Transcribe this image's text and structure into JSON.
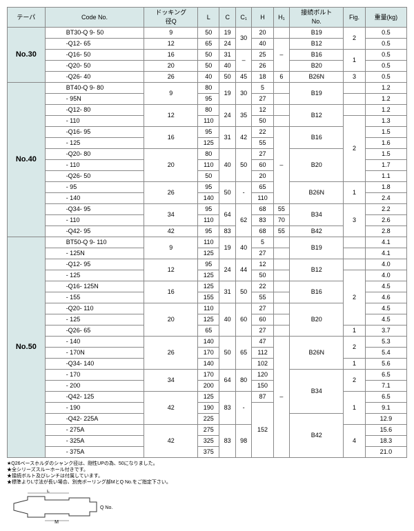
{
  "headers": [
    "テーパ",
    "Code No.",
    "ドッキング\n径Q",
    "L",
    "C",
    "C₁",
    "H",
    "H₁",
    "接続ボルト\nNo.",
    "Fig.",
    "重量(kg)"
  ],
  "groups": [
    {
      "taper": "No.30",
      "rows": [
        {
          "code": "BT30-Q 9- 50",
          "q": "9",
          "l": "50",
          "c": "19",
          "c1": "30",
          "h": "20",
          "h1": "",
          "bolt": "B19",
          "fig": "2",
          "wt": "0.5"
        },
        {
          "code": "-Q12- 65",
          "q": "12",
          "l": "65",
          "c": "24",
          "c1": "",
          "h": "40",
          "h1": "–",
          "bolt": "B12",
          "fig": "",
          "wt": "0.5"
        },
        {
          "code": "-Q16- 50",
          "q": "16",
          "l": "50",
          "c": "31",
          "c1": "–",
          "h": "25",
          "h1": "",
          "bolt": "B16",
          "fig": "1",
          "wt": "0.5"
        },
        {
          "code": "-Q20- 50",
          "q": "20",
          "l": "50",
          "c": "40",
          "c1": "",
          "h": "26",
          "h1": "",
          "bolt": "B20",
          "fig": "",
          "wt": "0.5"
        },
        {
          "code": "-Q26- 40",
          "q": "26",
          "l": "40",
          "c": "50",
          "c1": "45",
          "h": "18",
          "h1": "6",
          "bolt": "B26N",
          "fig": "3",
          "wt": "0.5"
        }
      ]
    },
    {
      "taper": "No.40",
      "rows": [
        {
          "code": "BT40-Q 9- 80",
          "q": "9",
          "l": "80",
          "c": "19",
          "c1": "30",
          "h": "5",
          "h1": "",
          "bolt": "B19",
          "fig": "",
          "wt": "1.2"
        },
        {
          "code": "- 95N",
          "q": "",
          "l": "95",
          "c": "",
          "c1": "",
          "h": "27",
          "h1": "",
          "bolt": "",
          "fig": "",
          "wt": "1.2"
        },
        {
          "code": "-Q12- 80",
          "q": "12",
          "l": "80",
          "c": "24",
          "c1": "35",
          "h": "12",
          "h1": "",
          "bolt": "B12",
          "fig": "",
          "wt": "1.2"
        },
        {
          "code": "- 110",
          "q": "",
          "l": "110",
          "c": "",
          "c1": "",
          "h": "50",
          "h1": "",
          "bolt": "",
          "fig": "2",
          "wt": "1.3"
        },
        {
          "code": "-Q16- 95",
          "q": "16",
          "l": "95",
          "c": "31",
          "c1": "42",
          "h": "22",
          "h1": "–",
          "bolt": "B16",
          "fig": "",
          "wt": "1.5"
        },
        {
          "code": "- 125",
          "q": "",
          "l": "125",
          "c": "",
          "c1": "",
          "h": "55",
          "h1": "",
          "bolt": "",
          "fig": "",
          "wt": "1.6"
        },
        {
          "code": "-Q20- 80",
          "q": "20",
          "l": "80",
          "c": "40",
          "c1": "50",
          "h": "27",
          "h1": "",
          "bolt": "B20",
          "fig": "",
          "wt": "1.5"
        },
        {
          "code": "- 110",
          "q": "",
          "l": "110",
          "c": "",
          "c1": "",
          "h": "60",
          "h1": "",
          "bolt": "",
          "fig": "",
          "wt": "1.7"
        },
        {
          "code": "-Q26- 50",
          "q": "",
          "l": "50",
          "c": "",
          "c1": "",
          "h": "20",
          "h1": "",
          "bolt": "",
          "fig": "",
          "wt": "1.1"
        },
        {
          "code": "- 95",
          "q": "26",
          "l": "95",
          "c": "50",
          "c1": "-",
          "h": "65",
          "h1": "",
          "bolt": "B26N",
          "fig": "1",
          "wt": "1.8"
        },
        {
          "code": "- 140",
          "q": "",
          "l": "140",
          "c": "",
          "c1": "",
          "h": "110",
          "h1": "",
          "bolt": "",
          "fig": "",
          "wt": "2.4"
        },
        {
          "code": "-Q34- 95",
          "q": "34",
          "l": "95",
          "c": "64",
          "c1": "62",
          "h": "68",
          "h1": "55",
          "bolt": "B34",
          "fig": "3",
          "wt": "2.2"
        },
        {
          "code": "- 110",
          "q": "",
          "l": "110",
          "c": "",
          "c1": "",
          "h": "83",
          "h1": "70",
          "bolt": "",
          "fig": "",
          "wt": "2.6"
        },
        {
          "code": "-Q42- 95",
          "q": "42",
          "l": "95",
          "c": "83",
          "c1": "",
          "h": "68",
          "h1": "55",
          "bolt": "B42",
          "fig": "",
          "wt": "2.8"
        }
      ]
    },
    {
      "taper": "No.50",
      "rows": [
        {
          "code": "BT50-Q 9- 110",
          "q": "9",
          "l": "110",
          "c": "19",
          "c1": "40",
          "h": "5",
          "h1": "",
          "bolt": "B19",
          "fig": "",
          "wt": "4.1"
        },
        {
          "code": "- 125N",
          "q": "",
          "l": "125",
          "c": "",
          "c1": "",
          "h": "27",
          "h1": "",
          "bolt": "",
          "fig": "",
          "wt": "4.1"
        },
        {
          "code": "-Q12- 95",
          "q": "12",
          "l": "95",
          "c": "24",
          "c1": "44",
          "h": "12",
          "h1": "",
          "bolt": "B12",
          "fig": "",
          "wt": "4.0"
        },
        {
          "code": "- 125",
          "q": "",
          "l": "125",
          "c": "",
          "c1": "",
          "h": "50",
          "h1": "",
          "bolt": "",
          "fig": "2",
          "wt": "4.0"
        },
        {
          "code": "-Q16- 125N",
          "q": "16",
          "l": "125",
          "c": "31",
          "c1": "50",
          "h": "22",
          "h1": "",
          "bolt": "B16",
          "fig": "",
          "wt": "4.5"
        },
        {
          "code": "- 155",
          "q": "",
          "l": "155",
          "c": "",
          "c1": "",
          "h": "55",
          "h1": "",
          "bolt": "",
          "fig": "",
          "wt": "4.6"
        },
        {
          "code": "-Q20- 110",
          "q": "20",
          "l": "110",
          "c": "40",
          "c1": "60",
          "h": "27",
          "h1": "",
          "bolt": "B20",
          "fig": "",
          "wt": "4.5"
        },
        {
          "code": "- 125",
          "q": "",
          "l": "125",
          "c": "",
          "c1": "",
          "h": "60",
          "h1": "",
          "bolt": "",
          "fig": "",
          "wt": "4.5"
        },
        {
          "code": "-Q26- 65",
          "q": "",
          "l": "65",
          "c": "",
          "c1": "",
          "h": "27",
          "h1": "",
          "bolt": "",
          "fig": "1",
          "wt": "3.7"
        },
        {
          "code": "- 140",
          "q": "26",
          "l": "140",
          "c": "50",
          "c1": "65",
          "h": "47",
          "h1": "–",
          "bolt": "B26N",
          "fig": "2",
          "wt": "5.3"
        },
        {
          "code": "- 170N",
          "q": "",
          "l": "170",
          "c": "",
          "c1": "",
          "h": "112",
          "h1": "",
          "bolt": "",
          "fig": "",
          "wt": "5.4"
        },
        {
          "code": "-Q34- 140",
          "q": "",
          "l": "140",
          "c": "",
          "c1": "",
          "h": "102",
          "h1": "",
          "bolt": "",
          "fig": "1",
          "wt": "5.6"
        },
        {
          "code": "- 170",
          "q": "34",
          "l": "170",
          "c": "64",
          "c1": "80",
          "h": "120",
          "h1": "",
          "bolt": "B34",
          "fig": "2",
          "wt": "6.5"
        },
        {
          "code": "- 200",
          "q": "",
          "l": "200",
          "c": "",
          "c1": "",
          "h": "150",
          "h1": "",
          "bolt": "",
          "fig": "",
          "wt": "7.1"
        },
        {
          "code": "-Q42- 125",
          "q": "42",
          "l": "125",
          "c": "83",
          "c1": "-",
          "h": "87",
          "h1": "",
          "bolt": "",
          "fig": "1",
          "wt": "6.5"
        },
        {
          "code": "- 190",
          "q": "",
          "l": "190",
          "c": "",
          "c1": "",
          "h": "152",
          "h1": "",
          "bolt": "",
          "fig": "",
          "wt": "9.1"
        },
        {
          "code": "-Q42- 225A",
          "q": "",
          "l": "225",
          "c": "",
          "c1": "",
          "h": "",
          "h1": "",
          "bolt": "B42",
          "fig": "",
          "wt": "12.9"
        },
        {
          "code": "- 275A",
          "q": "42",
          "l": "275",
          "c": "83",
          "c1": "98",
          "h": "",
          "h1": "",
          "bolt": "",
          "fig": "4",
          "wt": "15.6"
        },
        {
          "code": "- 325A",
          "q": "",
          "l": "325",
          "c": "",
          "c1": "",
          "h": "",
          "h1": "",
          "bolt": "",
          "fig": "",
          "wt": "18.3"
        },
        {
          "code": "- 375A",
          "q": "",
          "l": "375",
          "c": "",
          "c1": "",
          "h": "",
          "h1": "",
          "bolt": "",
          "fig": "",
          "wt": "21.0"
        }
      ]
    }
  ],
  "notes": [
    "★Q26ベースホルダのシャンク径は、剛性UPの為、50になりました。",
    "★全シリーズスルーホール付きです。",
    "★接続ボルト及びレンチは付属しています。",
    "★標準よりL寸法が長い場合、別売ボーリング部MとQ No.をご指定下さい。"
  ],
  "diagram": {
    "labels": [
      "L",
      "M",
      "Q No."
    ]
  }
}
